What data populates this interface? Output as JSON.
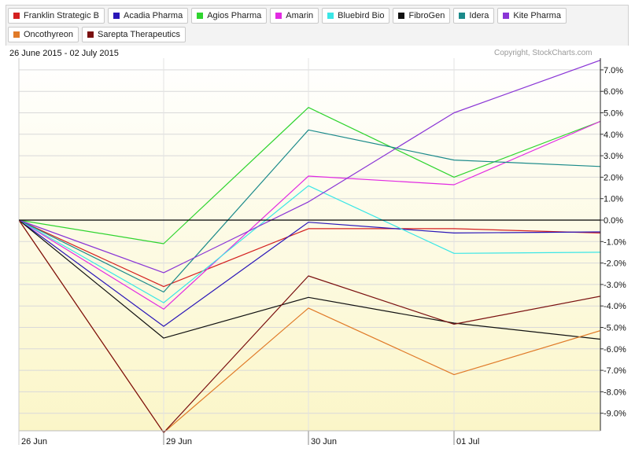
{
  "header": {
    "date_range": "26 June 2015 - 02 July 2015",
    "copyright": "Copyright, StockCharts.com"
  },
  "legend": [
    {
      "label": "Franklin Strategic B",
      "color": "#d42020"
    },
    {
      "label": "Acadia Pharma",
      "color": "#2a16b8"
    },
    {
      "label": "Agios Pharma",
      "color": "#2fd42f"
    },
    {
      "label": "Amarin",
      "color": "#e22ae2"
    },
    {
      "label": "Bluebird Bio",
      "color": "#3ae6e6"
    },
    {
      "label": "FibroGen",
      "color": "#111111"
    },
    {
      "label": "Idera",
      "color": "#1b8a8a"
    },
    {
      "label": "Kite Pharma",
      "color": "#8a35d6"
    },
    {
      "label": "Oncothyreon",
      "color": "#e07a28"
    },
    {
      "label": "Sarepta Therapeutics",
      "color": "#7a1010"
    }
  ],
  "chart_data": {
    "type": "line",
    "x": [
      "26 Jun",
      "29 Jun",
      "30 Jun",
      "01 Jul",
      "02 Jul"
    ],
    "x_tick_labels": [
      "26  Jun",
      "29  Jun",
      "30  Jun",
      "01  Jul"
    ],
    "ylabel": "",
    "ylim": [
      -10.0,
      7.5
    ],
    "y_ticks": [
      7,
      6,
      5,
      4,
      3,
      2,
      1,
      0,
      -1,
      -2,
      -3,
      -4,
      -5,
      -6,
      -7,
      -8,
      -9
    ],
    "y_tick_labels": [
      "7.0%",
      "6.0%",
      "5.0%",
      "4.0%",
      "3.0%",
      "2.0%",
      "1.0%",
      "0.0%",
      "-1.0%",
      "-2.0%",
      "-3.0%",
      "-4.0%",
      "-5.0%",
      "-6.0%",
      "-7.0%",
      "-8.0%",
      "-9.0%"
    ],
    "grid": true,
    "series": [
      {
        "name": "Franklin Strategic B",
        "color": "#d42020",
        "values": [
          0,
          -3.1,
          -0.4,
          -0.4,
          -0.6
        ]
      },
      {
        "name": "Acadia Pharma",
        "color": "#2a16b8",
        "values": [
          0,
          -4.95,
          -0.1,
          -0.6,
          -0.55
        ]
      },
      {
        "name": "Agios Pharma",
        "color": "#2fd42f",
        "values": [
          0,
          -1.1,
          5.25,
          2.0,
          4.6
        ]
      },
      {
        "name": "Amarin",
        "color": "#e22ae2",
        "values": [
          0,
          -4.15,
          2.05,
          1.65,
          4.6
        ]
      },
      {
        "name": "Bluebird Bio",
        "color": "#3ae6e6",
        "values": [
          0,
          -3.85,
          1.6,
          -1.55,
          -1.5
        ]
      },
      {
        "name": "FibroGen",
        "color": "#111111",
        "values": [
          0,
          -5.5,
          -3.6,
          -4.8,
          -5.55
        ]
      },
      {
        "name": "Idera",
        "color": "#1b8a8a",
        "values": [
          0,
          -3.35,
          4.2,
          2.8,
          2.5
        ]
      },
      {
        "name": "Kite Pharma",
        "color": "#8a35d6",
        "values": [
          0,
          -2.45,
          0.85,
          5.0,
          7.45
        ]
      },
      {
        "name": "Oncothyreon",
        "color": "#e07a28",
        "values": [
          0,
          -9.9,
          -4.1,
          -7.2,
          -5.15
        ]
      },
      {
        "name": "Sarepta Therapeutics",
        "color": "#7a1010",
        "values": [
          0,
          -9.9,
          -2.6,
          -4.85,
          -3.55
        ]
      }
    ]
  }
}
